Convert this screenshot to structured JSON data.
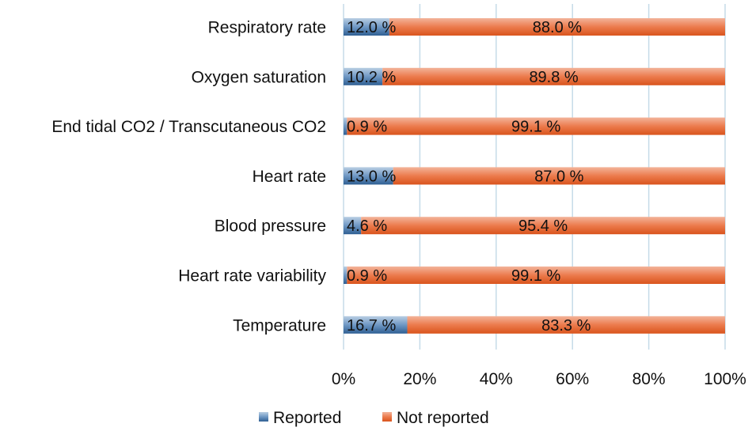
{
  "chart_data": {
    "type": "bar",
    "orientation": "horizontal",
    "stacked": true,
    "percent": true,
    "categories": [
      "Respiratory rate",
      "Oxygen saturation",
      "End tidal CO2 / Transcutaneous CO2",
      "Heart rate",
      "Blood pressure",
      "Heart rate variability",
      "Temperature"
    ],
    "series": [
      {
        "name": "Reported",
        "color": "#4f81bd",
        "values": [
          12.0,
          10.2,
          0.9,
          13.0,
          4.6,
          0.9,
          16.7
        ],
        "labels": [
          "12.0 %",
          "10.2 %",
          "0.9 %",
          "13.0 %",
          "4.6 %",
          "0.9 %",
          "16.7 %"
        ]
      },
      {
        "name": "Not reported",
        "color": "#e8632b",
        "values": [
          88.0,
          89.8,
          99.1,
          87.0,
          95.4,
          99.1,
          83.3
        ],
        "labels": [
          "88.0 %",
          "89.8 %",
          "99.1 %",
          "87.0 %",
          "95.4 %",
          "99.1 %",
          "83.3 %"
        ]
      }
    ],
    "xlim": [
      0,
      100
    ],
    "ticks": [
      "0%",
      "20%",
      "40%",
      "60%",
      "80%",
      "100%"
    ],
    "grid": true,
    "legend": "bottom",
    "title": "",
    "xlabel": "",
    "ylabel": ""
  }
}
